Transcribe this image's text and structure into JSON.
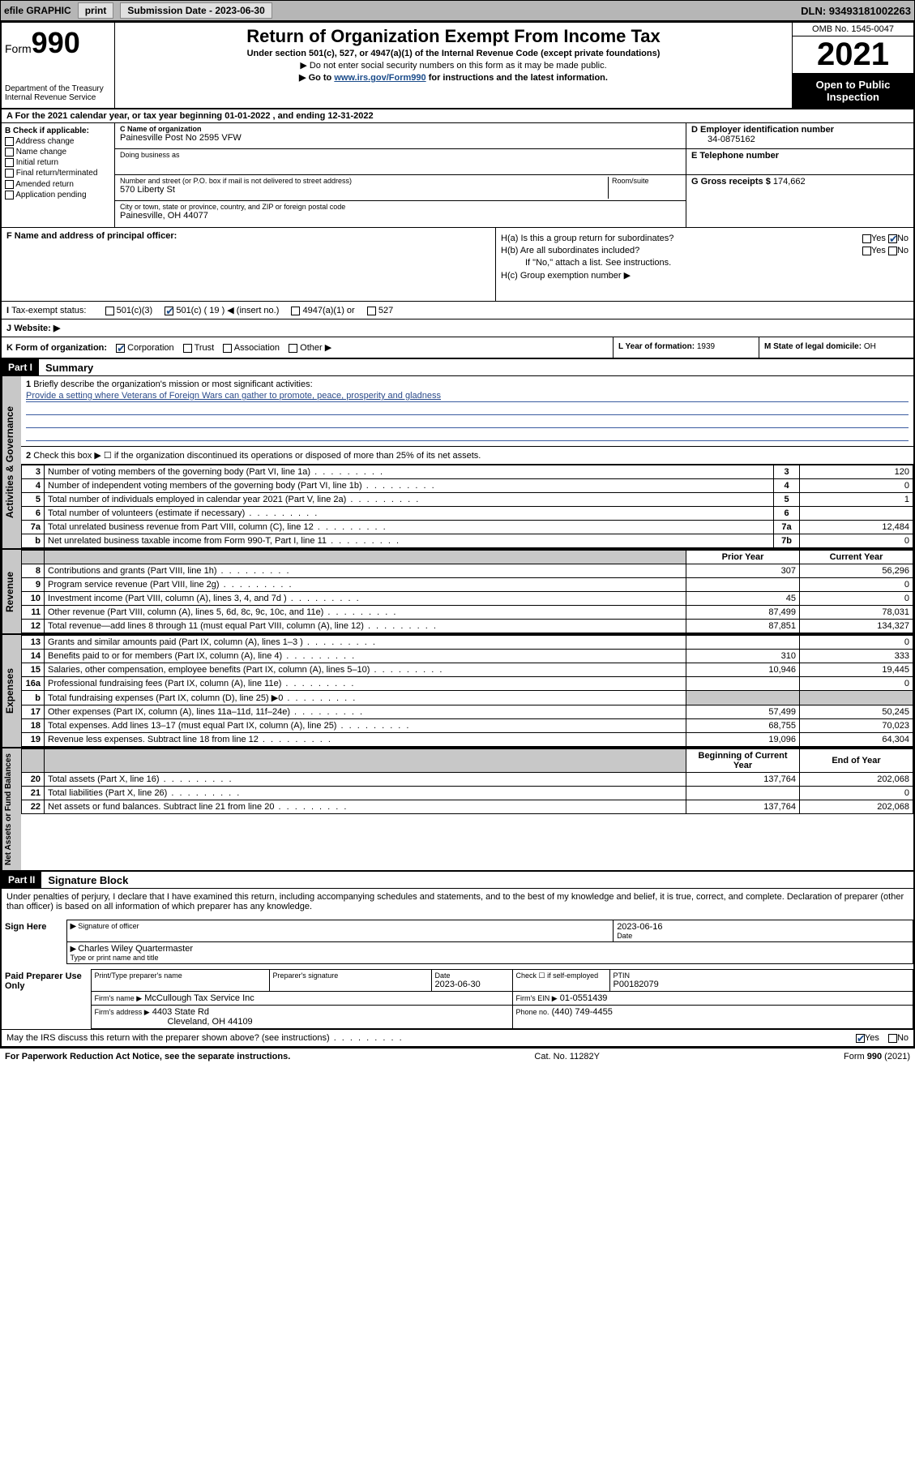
{
  "topbar": {
    "efile_label": "efile GRAPHIC",
    "print_btn": "print",
    "sub_date_label": "Submission Date - 2023-06-30",
    "dln": "DLN: 93493181002263"
  },
  "header": {
    "form_word": "Form",
    "form_num": "990",
    "dept": "Department of the Treasury",
    "irs": "Internal Revenue Service",
    "title": "Return of Organization Exempt From Income Tax",
    "subtitle": "Under section 501(c), 527, or 4947(a)(1) of the Internal Revenue Code (except private foundations)",
    "note1": "▶ Do not enter social security numbers on this form as it may be made public.",
    "note2_pre": "▶ Go to ",
    "note2_link": "www.irs.gov/Form990",
    "note2_post": " for instructions and the latest information.",
    "omb": "OMB No. 1545-0047",
    "year": "2021",
    "open_public": "Open to Public Inspection"
  },
  "row_a": "For the 2021 calendar year, or tax year beginning 01-01-2022   , and ending 12-31-2022",
  "box_b": {
    "title": "B Check if applicable:",
    "items": [
      "Address change",
      "Name change",
      "Initial return",
      "Final return/terminated",
      "Amended return",
      "Application pending"
    ]
  },
  "box_c": {
    "name_label": "C Name of organization",
    "name": "Painesville Post No 2595 VFW",
    "dba_label": "Doing business as",
    "addr_label": "Number and street (or P.O. box if mail is not delivered to street address)",
    "room_label": "Room/suite",
    "addr": "570 Liberty St",
    "city_label": "City or town, state or province, country, and ZIP or foreign postal code",
    "city": "Painesville, OH  44077"
  },
  "box_d": {
    "ein_label": "D Employer identification number",
    "ein": "34-0875162",
    "phone_label": "E Telephone number",
    "gross_label": "G Gross receipts $",
    "gross": "174,662"
  },
  "box_f_label": "F  Name and address of principal officer:",
  "box_h": {
    "ha": "H(a)  Is this a group return for subordinates?",
    "hb": "H(b)  Are all subordinates included?",
    "hb_note": "If \"No,\" attach a list. See instructions.",
    "hc": "H(c)  Group exemption number ▶"
  },
  "row_i": {
    "label": "Tax-exempt status:",
    "opts": [
      "501(c)(3)",
      "501(c) ( 19 ) ◀ (insert no.)",
      "4947(a)(1) or",
      "527"
    ]
  },
  "row_j": "Website: ▶",
  "row_k": {
    "k": "K Form of organization:",
    "opts": [
      "Corporation",
      "Trust",
      "Association",
      "Other ▶"
    ],
    "l_label": "L Year of formation:",
    "l_val": "1939",
    "m_label": "M State of legal domicile:",
    "m_val": "OH"
  },
  "part1": {
    "header": "Part I",
    "title": "Summary",
    "line1_label": "Briefly describe the organization's mission or most significant activities:",
    "mission": "Provide a setting where Veterans of Foreign Wars can gather to promote, peace, prosperity and gladness",
    "line2": "Check this box ▶ ☐  if the organization discontinued its operations or disposed of more than 25% of its net assets.",
    "hdr_prior": "Prior Year",
    "hdr_current": "Current Year",
    "hdr_boy": "Beginning of Current Year",
    "hdr_eoy": "End of Year"
  },
  "gov_lines": [
    {
      "n": "3",
      "d": "Number of voting members of the governing body (Part VI, line 1a)",
      "box": "3",
      "v": "120"
    },
    {
      "n": "4",
      "d": "Number of independent voting members of the governing body (Part VI, line 1b)",
      "box": "4",
      "v": "0"
    },
    {
      "n": "5",
      "d": "Total number of individuals employed in calendar year 2021 (Part V, line 2a)",
      "box": "5",
      "v": "1"
    },
    {
      "n": "6",
      "d": "Total number of volunteers (estimate if necessary)",
      "box": "6",
      "v": ""
    },
    {
      "n": "7a",
      "d": "Total unrelated business revenue from Part VIII, column (C), line 12",
      "box": "7a",
      "v": "12,484"
    },
    {
      "n": "b",
      "d": "Net unrelated business taxable income from Form 990-T, Part I, line 11",
      "box": "7b",
      "v": "0"
    }
  ],
  "rev_lines": [
    {
      "n": "8",
      "d": "Contributions and grants (Part VIII, line 1h)",
      "p": "307",
      "c": "56,296"
    },
    {
      "n": "9",
      "d": "Program service revenue (Part VIII, line 2g)",
      "p": "",
      "c": "0"
    },
    {
      "n": "10",
      "d": "Investment income (Part VIII, column (A), lines 3, 4, and 7d )",
      "p": "45",
      "c": "0"
    },
    {
      "n": "11",
      "d": "Other revenue (Part VIII, column (A), lines 5, 6d, 8c, 9c, 10c, and 11e)",
      "p": "87,499",
      "c": "78,031"
    },
    {
      "n": "12",
      "d": "Total revenue—add lines 8 through 11 (must equal Part VIII, column (A), line 12)",
      "p": "87,851",
      "c": "134,327"
    }
  ],
  "exp_lines": [
    {
      "n": "13",
      "d": "Grants and similar amounts paid (Part IX, column (A), lines 1–3 )",
      "p": "",
      "c": "0"
    },
    {
      "n": "14",
      "d": "Benefits paid to or for members (Part IX, column (A), line 4)",
      "p": "310",
      "c": "333"
    },
    {
      "n": "15",
      "d": "Salaries, other compensation, employee benefits (Part IX, column (A), lines 5–10)",
      "p": "10,946",
      "c": "19,445"
    },
    {
      "n": "16a",
      "d": "Professional fundraising fees (Part IX, column (A), line 11e)",
      "p": "",
      "c": "0"
    },
    {
      "n": "b",
      "d": "Total fundraising expenses (Part IX, column (D), line 25) ▶0",
      "p": "grey",
      "c": "grey"
    },
    {
      "n": "17",
      "d": "Other expenses (Part IX, column (A), lines 11a–11d, 11f–24e)",
      "p": "57,499",
      "c": "50,245"
    },
    {
      "n": "18",
      "d": "Total expenses. Add lines 13–17 (must equal Part IX, column (A), line 25)",
      "p": "68,755",
      "c": "70,023"
    },
    {
      "n": "19",
      "d": "Revenue less expenses. Subtract line 18 from line 12",
      "p": "19,096",
      "c": "64,304"
    }
  ],
  "net_lines": [
    {
      "n": "20",
      "d": "Total assets (Part X, line 16)",
      "p": "137,764",
      "c": "202,068"
    },
    {
      "n": "21",
      "d": "Total liabilities (Part X, line 26)",
      "p": "",
      "c": "0"
    },
    {
      "n": "22",
      "d": "Net assets or fund balances. Subtract line 21 from line 20",
      "p": "137,764",
      "c": "202,068"
    }
  ],
  "part2": {
    "header": "Part II",
    "title": "Signature Block",
    "decl": "Under penalties of perjury, I declare that I have examined this return, including accompanying schedules and statements, and to the best of my knowledge and belief, it is true, correct, and complete. Declaration of preparer (other than officer) is based on all information of which preparer has any knowledge."
  },
  "sign": {
    "here": "Sign Here",
    "sig_label": "Signature of officer",
    "date_label": "Date",
    "date": "2023-06-16",
    "name": "Charles Wiley Quartermaster",
    "name_label": "Type or print name and title"
  },
  "paid": {
    "title": "Paid Preparer Use Only",
    "name_label": "Print/Type preparer's name",
    "sig_label": "Preparer's signature",
    "date_label": "Date",
    "date": "2023-06-30",
    "check_label": "Check ☐ if self-employed",
    "ptin_label": "PTIN",
    "ptin": "P00182079",
    "firm_name_label": "Firm's name    ▶",
    "firm_name": "McCullough Tax Service Inc",
    "firm_ein_label": "Firm's EIN ▶",
    "firm_ein": "01-0551439",
    "firm_addr_label": "Firm's address ▶",
    "firm_addr1": "4403 State Rd",
    "firm_addr2": "Cleveland, OH  44109",
    "phone_label": "Phone no.",
    "phone": "(440) 749-4455"
  },
  "discuss": "May the IRS discuss this return with the preparer shown above? (see instructions)",
  "footer": {
    "left": "For Paperwork Reduction Act Notice, see the separate instructions.",
    "mid": "Cat. No. 11282Y",
    "right": "Form 990 (2021)"
  },
  "labels": {
    "yes": "Yes",
    "no": "No"
  }
}
